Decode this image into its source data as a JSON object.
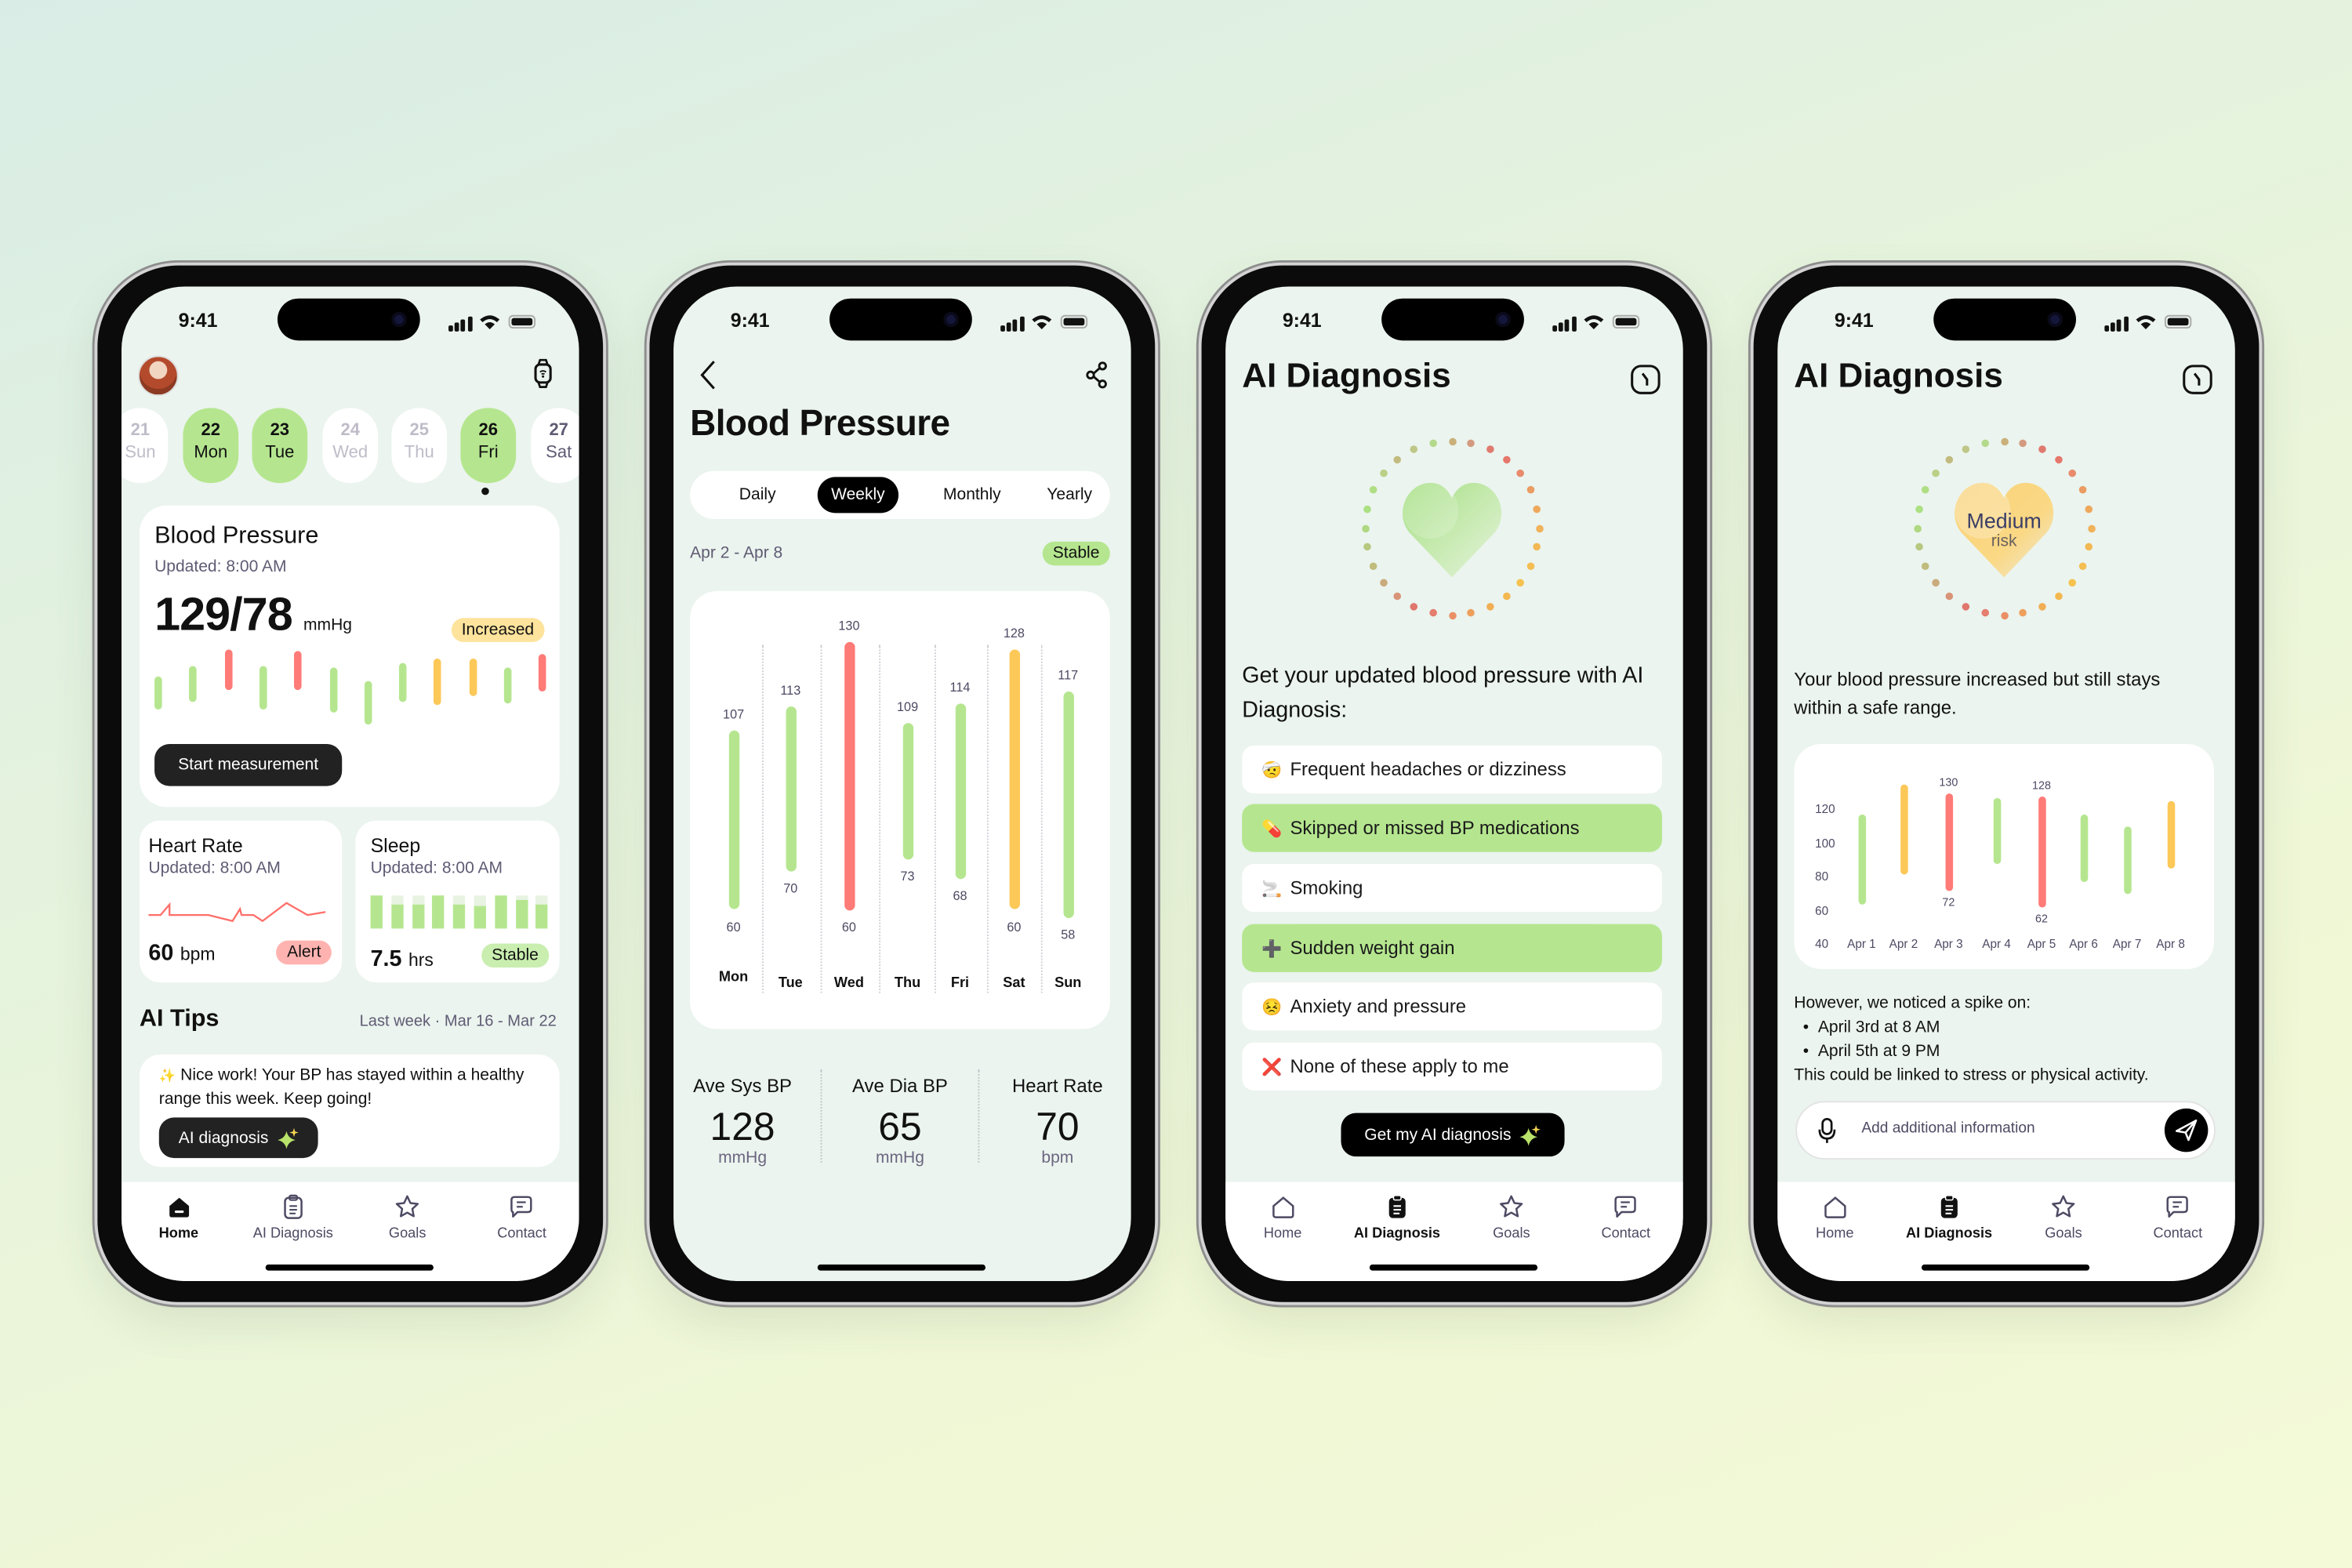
{
  "status": {
    "time": "9:41"
  },
  "tabs": [
    {
      "label": "Home",
      "icon": "home-icon"
    },
    {
      "label": "AI Diagnosis",
      "icon": "clipboard-icon"
    },
    {
      "label": "Goals",
      "icon": "star-icon"
    },
    {
      "label": "Contact",
      "icon": "chat-icon"
    }
  ],
  "colors": {
    "accent_green": "#b5e68f",
    "alert_red": "#ff7b78",
    "warning_yellow": "#fcc858",
    "dark": "#222222",
    "screen_bg": "#ebf4ee"
  },
  "home": {
    "active_tab": 0,
    "dates": [
      {
        "day": "21",
        "weekday": "Sun",
        "state": "inactive"
      },
      {
        "day": "22",
        "weekday": "Mon",
        "state": "selected"
      },
      {
        "day": "23",
        "weekday": "Tue",
        "state": "selected"
      },
      {
        "day": "24",
        "weekday": "Wed",
        "state": "inactive"
      },
      {
        "day": "25",
        "weekday": "Thu",
        "state": "inactive"
      },
      {
        "day": "26",
        "weekday": "Fri",
        "state": "today"
      },
      {
        "day": "27",
        "weekday": "Sat",
        "state": "future"
      }
    ],
    "bp_card": {
      "title": "Blood Pressure",
      "updated": "Updated: 8:00 AM",
      "value": "129/78",
      "unit": "mmHg",
      "badge": "Increased",
      "button": "Start measurement",
      "bar_statuses": [
        "normal",
        "normal",
        "high",
        "normal",
        "high",
        "normal",
        "normal",
        "normal",
        "elevated",
        "elevated",
        "normal",
        "high"
      ]
    },
    "heart_rate": {
      "title": "Heart Rate",
      "updated": "Updated: 8:00 AM",
      "value": "60",
      "unit": "bpm",
      "badge": "Alert"
    },
    "sleep": {
      "title": "Sleep",
      "updated": "Updated: 8:00 AM",
      "value": "7.5",
      "unit": "hrs",
      "badge": "Stable",
      "night_levels": [
        1,
        0.75,
        0.75,
        1,
        0.75,
        0.7,
        1,
        0.87,
        0.75
      ]
    },
    "ai_tips": {
      "title": "AI Tips",
      "period": "Last week · Mar 16 - Mar 22",
      "emoji": "✨",
      "message": "Nice work! Your BP has stayed within a healthy range this week. Keep going!",
      "button": "AI diagnosis"
    }
  },
  "blood_pressure": {
    "title": "Blood Pressure",
    "periods": [
      "Daily",
      "Weekly",
      "Monthly",
      "Yearly"
    ],
    "active_period": 1,
    "range": "Apr 2 - Apr 8",
    "badge": "Stable",
    "stats": [
      {
        "label": "Ave Sys BP",
        "value": "128",
        "unit": "mmHg"
      },
      {
        "label": "Ave Dia BP",
        "value": "65",
        "unit": "mmHg"
      },
      {
        "label": "Heart Rate",
        "value": "70",
        "unit": "bpm"
      }
    ]
  },
  "chart_data": [
    {
      "type": "range-bar",
      "categories": [
        "Mon",
        "Tue",
        "Wed",
        "Thu",
        "Fri",
        "Sat",
        "Sun"
      ],
      "high": [
        107,
        113,
        130,
        109,
        114,
        128,
        117
      ],
      "low": [
        60,
        70,
        60,
        73,
        68,
        60,
        58
      ],
      "status": [
        "normal",
        "normal",
        "high",
        "normal",
        "normal",
        "elevated",
        "normal"
      ],
      "value_labels": "all",
      "grid": "vertical-dotted"
    },
    {
      "type": "range-bar",
      "categories": [
        "Apr 1",
        "Apr 2",
        "Apr 3",
        "Apr 4",
        "Apr 5",
        "Apr 6",
        "Apr 7",
        "Apr 8"
      ],
      "high": [
        117,
        135,
        130,
        127,
        128,
        117,
        110,
        125
      ],
      "low": [
        64,
        82,
        72,
        88,
        62,
        77,
        70,
        85
      ],
      "status": [
        "normal",
        "elevated",
        "high",
        "normal",
        "high",
        "normal",
        "normal",
        "elevated"
      ],
      "labeled": [
        2,
        4
      ],
      "yticks": [
        120,
        100,
        80,
        60,
        40
      ],
      "ylim": [
        40,
        140
      ],
      "grid": "off"
    }
  ],
  "diagnosis": {
    "title": "AI Diagnosis",
    "active_tab": 1,
    "prompt": "Get your updated blood pressure with AI Diagnosis:",
    "options": [
      {
        "icon": "🤕",
        "label": "Frequent headaches or dizziness",
        "selected": false
      },
      {
        "icon": "💊",
        "label": "Skipped or missed BP medications",
        "selected": true
      },
      {
        "icon": "🚬",
        "label": "Smoking",
        "selected": false
      },
      {
        "icon": "➕",
        "label": "Sudden weight gain",
        "selected": true
      },
      {
        "icon": "😣",
        "label": "Anxiety and pressure",
        "selected": false
      },
      {
        "icon": "❌",
        "label": "None of these apply to me",
        "selected": false
      }
    ],
    "button": "Get my AI diagnosis"
  },
  "result": {
    "title": "AI Diagnosis",
    "active_tab": 1,
    "risk_level": "Medium",
    "risk_label": "risk",
    "summary": "Your blood pressure increased but still stays within a safe range.",
    "spike_intro": "However, we noticed a spike on:",
    "spikes": [
      "April 3rd at 8 AM",
      "April 5th at 9 PM"
    ],
    "conclusion": "This could be linked to stress or physical activity.",
    "input_placeholder": "Add additional information"
  }
}
